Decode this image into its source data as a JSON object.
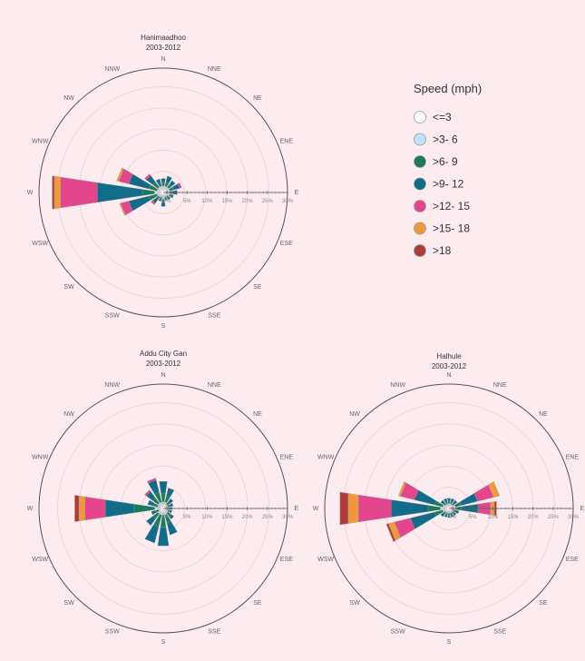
{
  "legend": {
    "title": "Speed (mph)",
    "bins": [
      {
        "label": "<=3",
        "color": "#ffffff"
      },
      {
        "label": ">3- 6",
        "color": "#bfe3f2"
      },
      {
        "label": ">6- 9",
        "color": "#1b7a5a"
      },
      {
        "label": ">9- 12",
        "color": "#106c8a"
      },
      {
        "label": ">12- 15",
        "color": "#e4468e"
      },
      {
        "label": ">15- 18",
        "color": "#ef9a3a"
      },
      {
        "label": ">18",
        "color": "#b03a3a"
      }
    ]
  },
  "directions": [
    "N",
    "NNE",
    "NE",
    "ENE",
    "E",
    "ESE",
    "SE",
    "SSE",
    "S",
    "SSW",
    "SW",
    "WSW",
    "W",
    "WNW",
    "NW",
    "NNW"
  ],
  "chart_data": [
    {
      "type": "windrose",
      "title": "Hanimaadhoo",
      "subtitle": "2003-2012",
      "radial_max": 30,
      "radial_ticks": [
        "0%",
        "5%",
        "10%",
        "15%",
        "20%",
        "25%",
        "30%"
      ],
      "series_units": "percent frequency",
      "petals": {
        "N": [
          0.5,
          0.5,
          0.8,
          1.0,
          0,
          0,
          0
        ],
        "NNE": [
          0.5,
          0.5,
          1.0,
          1.5,
          0,
          0,
          0
        ],
        "NE": [
          0.5,
          0.5,
          1.0,
          1.0,
          0,
          0,
          0
        ],
        "ENE": [
          0.5,
          0.5,
          1.0,
          1.5,
          0.5,
          0,
          0
        ],
        "E": [
          0.5,
          0.5,
          0.8,
          1.0,
          0,
          0,
          0
        ],
        "ESE": [
          0.5,
          0.5,
          0.5,
          0.5,
          0,
          0,
          0
        ],
        "SE": [
          0.3,
          0.3,
          0.5,
          0.5,
          0,
          0,
          0
        ],
        "SSE": [
          0.3,
          0.3,
          0.3,
          0.5,
          0,
          0,
          0
        ],
        "S": [
          0.5,
          0.5,
          0.8,
          1.0,
          0,
          0,
          0
        ],
        "SSW": [
          0.3,
          0.3,
          0.5,
          0.5,
          0,
          0,
          0
        ],
        "SW": [
          0.3,
          0.5,
          0.8,
          1.0,
          0.5,
          0,
          0
        ],
        "WSW": [
          0.5,
          0.5,
          2.0,
          5.0,
          2.0,
          0.3,
          0
        ],
        "W": [
          0.5,
          1.0,
          3.0,
          11.0,
          9.0,
          1.5,
          0.5
        ],
        "WNW": [
          0.5,
          0.5,
          2.0,
          5.0,
          2.5,
          0.5,
          0
        ],
        "NW": [
          0.5,
          0.5,
          1.5,
          2.0,
          0.5,
          0,
          0
        ],
        "NNW": [
          0.5,
          0.5,
          0.8,
          1.0,
          0,
          0,
          0
        ]
      }
    },
    {
      "type": "windrose",
      "title": "Addu City Gan",
      "subtitle": "2003-2012",
      "radial_max": 30,
      "radial_ticks": [
        "0%",
        "5%",
        "10%",
        "15%",
        "20%",
        "25%",
        "30%"
      ],
      "series_units": "percent frequency",
      "petals": {
        "N": [
          0.5,
          0.5,
          2.0,
          3.0,
          0,
          0,
          0
        ],
        "NNE": [
          0.5,
          0.5,
          1.5,
          2.0,
          0,
          0,
          0
        ],
        "NE": [
          0.3,
          0.3,
          0.8,
          1.0,
          0,
          0,
          0
        ],
        "ENE": [
          0.3,
          0.3,
          0.5,
          0.8,
          0,
          0,
          0
        ],
        "E": [
          0.3,
          0.3,
          0.5,
          0.5,
          0,
          0,
          0
        ],
        "ESE": [
          0.3,
          0.3,
          0.5,
          0.5,
          0,
          0,
          0
        ],
        "SE": [
          0.3,
          0.5,
          0.8,
          1.0,
          0,
          0,
          0
        ],
        "SSE": [
          0.5,
          0.5,
          2.0,
          3.0,
          0,
          0,
          0
        ],
        "S": [
          0.5,
          0.5,
          3.0,
          4.5,
          0,
          0,
          0
        ],
        "SSW": [
          0.5,
          0.5,
          3.0,
          4.0,
          0,
          0,
          0
        ],
        "SW": [
          0.5,
          0.5,
          1.5,
          2.0,
          0,
          0,
          0
        ],
        "WSW": [
          0.3,
          0.3,
          0.8,
          1.0,
          0,
          0,
          0
        ],
        "W": [
          0.5,
          1.0,
          5.0,
          7.0,
          5.0,
          1.5,
          1.0
        ],
        "WNW": [
          0.3,
          0.5,
          1.0,
          1.5,
          0,
          0,
          0
        ],
        "NW": [
          0.5,
          0.5,
          1.5,
          2.0,
          0.5,
          0,
          0
        ],
        "NNW": [
          0.5,
          0.5,
          2.5,
          3.0,
          0.5,
          0,
          0
        ]
      }
    },
    {
      "type": "windrose",
      "title": "Halhule",
      "subtitle": "2003-2012",
      "radial_max": 30,
      "radial_ticks": [
        "0%",
        "5%",
        "10%",
        "15%",
        "20%",
        "25%",
        "30%"
      ],
      "series_units": "percent frequency",
      "petals": {
        "N": [
          0.3,
          0.3,
          0.5,
          0.8,
          0,
          0,
          0
        ],
        "NNE": [
          0.3,
          0.3,
          0.5,
          0.8,
          0,
          0,
          0
        ],
        "NE": [
          0.3,
          0.3,
          0.5,
          0.8,
          0,
          0,
          0
        ],
        "ENE": [
          0.5,
          0.5,
          1.5,
          4.0,
          4.0,
          1.5,
          0
        ],
        "E": [
          0.5,
          0.5,
          1.5,
          4.0,
          3.0,
          1.0,
          0.5
        ],
        "ESE": [
          0.3,
          0.3,
          0.5,
          0.8,
          0,
          0,
          0
        ],
        "SE": [
          0.3,
          0.3,
          0.5,
          0.5,
          0,
          0,
          0
        ],
        "SSE": [
          0.3,
          0.3,
          0.5,
          0.5,
          0,
          0,
          0
        ],
        "S": [
          0.3,
          0.3,
          0.5,
          0.5,
          0,
          0,
          0
        ],
        "SSW": [
          0.3,
          0.3,
          0.5,
          0.5,
          0,
          0,
          0
        ],
        "SW": [
          0.3,
          0.3,
          0.5,
          0.8,
          0,
          0,
          0
        ],
        "WSW": [
          0.5,
          0.5,
          2.0,
          6.0,
          4.0,
          1.5,
          0.5
        ],
        "W": [
          0.5,
          1.0,
          3.0,
          9.0,
          8.0,
          2.5,
          2.0
        ],
        "WNW": [
          0.5,
          0.5,
          2.0,
          5.0,
          3.5,
          0.5,
          0
        ],
        "NW": [
          0.3,
          0.3,
          0.5,
          0.8,
          0,
          0,
          0
        ],
        "NNW": [
          0.3,
          0.3,
          0.5,
          0.8,
          0,
          0,
          0
        ]
      }
    }
  ]
}
